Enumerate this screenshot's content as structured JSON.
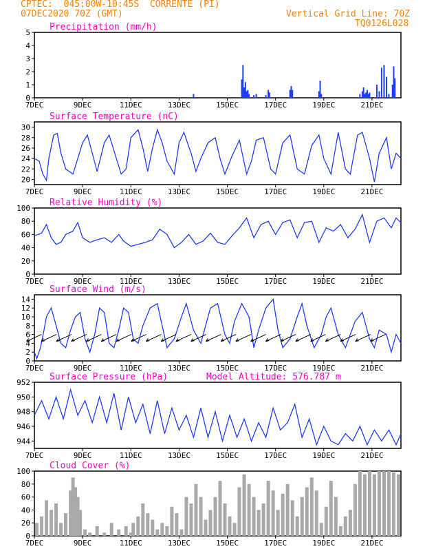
{
  "header": {
    "line1": "CPTEC:  045:00W-10:45S  CORRENTE (PI)",
    "line2": "07DEC2020 70Z (GMT)",
    "right1": "Vertical Grid Line: 70Z",
    "right2": "TQ0126L028",
    "altitude": "Model Altitude: 576.787 m"
  },
  "colors": {
    "header": "#ff8000",
    "title": "#ff00c8",
    "series": "#1e3cff",
    "cloud": "#a9a9a9",
    "frame": "#000000"
  },
  "x_ticks": [
    "7DEC",
    "9DEC",
    "11DEC",
    "13DEC",
    "15DEC",
    "17DEC",
    "19DEC",
    "21DEC"
  ],
  "chart_data": [
    {
      "id": "precip",
      "type": "bar",
      "title": "Precipitation (mm/h)",
      "ylim": [
        0,
        5
      ],
      "yticks": [
        0,
        1,
        2,
        3,
        4,
        5
      ],
      "start_day": 7,
      "end_day": 22.2,
      "x": [
        13.6,
        15.6,
        15.65,
        15.7,
        15.75,
        15.8,
        15.85,
        15.9,
        16.1,
        16.2,
        16.6,
        16.7,
        16.75,
        17.6,
        17.65,
        17.7,
        18.8,
        18.85,
        18.9,
        20.5,
        20.6,
        20.65,
        20.7,
        20.75,
        20.8,
        20.85,
        20.9,
        21.2,
        21.3,
        21.4,
        21.5,
        21.6,
        21.7,
        21.85,
        21.9,
        21.95
      ],
      "values": [
        0.3,
        1.4,
        2.5,
        0.8,
        1.2,
        0.5,
        0.6,
        0.3,
        0.2,
        0.3,
        0.2,
        0.6,
        0.4,
        0.6,
        0.9,
        0.6,
        0.5,
        1.3,
        0.3,
        0.3,
        0.5,
        0.8,
        0.3,
        0.4,
        0.6,
        0.3,
        0.4,
        1.0,
        0.5,
        2.3,
        2.5,
        1.6,
        0.3,
        1.0,
        2.4,
        1.5
      ]
    },
    {
      "id": "temp",
      "type": "line",
      "title": "Surface Temperature (nC)",
      "ylim": [
        19,
        31
      ],
      "yticks": [
        20,
        22,
        24,
        26,
        28,
        30
      ],
      "start_day": 7,
      "end_day": 22.2,
      "x": [
        7.0,
        7.2,
        7.35,
        7.5,
        7.6,
        7.8,
        7.95,
        8.1,
        8.3,
        8.6,
        8.8,
        9.0,
        9.2,
        9.4,
        9.6,
        9.9,
        10.1,
        10.2,
        10.4,
        10.6,
        10.8,
        11.0,
        11.3,
        11.5,
        11.7,
        11.9,
        12.1,
        12.3,
        12.5,
        12.8,
        13.0,
        13.2,
        13.5,
        13.7,
        13.9,
        14.2,
        14.5,
        14.7,
        14.9,
        15.2,
        15.5,
        15.8,
        16.0,
        16.2,
        16.5,
        16.8,
        17.0,
        17.3,
        17.6,
        17.9,
        18.2,
        18.5,
        18.8,
        19.0,
        19.3,
        19.6,
        19.9,
        20.1,
        20.4,
        20.6,
        20.9,
        21.1,
        21.3,
        21.6,
        21.8,
        22.0,
        22.2
      ],
      "values": [
        24,
        23.5,
        21,
        19.8,
        24,
        28.5,
        28.8,
        25,
        22,
        21,
        24,
        27,
        28.5,
        25,
        21.5,
        27,
        28.5,
        27,
        24,
        21,
        22,
        28,
        29.5,
        26,
        21.5,
        26,
        29.5,
        27,
        23.5,
        21,
        27,
        29,
        25,
        21.5,
        24,
        27,
        28,
        24,
        21,
        24.5,
        27.5,
        21,
        23.5,
        27.5,
        28,
        22,
        21,
        27,
        28.5,
        22,
        21,
        26.5,
        28.5,
        24,
        21,
        29,
        22,
        21,
        28.5,
        29,
        24,
        19.5,
        25,
        28,
        22,
        25,
        24
      ]
    },
    {
      "id": "rh",
      "type": "line",
      "title": "Relative Humidity (%)",
      "ylim": [
        0,
        100
      ],
      "yticks": [
        0,
        20,
        40,
        60,
        80,
        100
      ],
      "start_day": 7,
      "end_day": 22.2,
      "x": [
        7.0,
        7.3,
        7.5,
        7.7,
        7.9,
        8.1,
        8.3,
        8.6,
        8.8,
        9.0,
        9.3,
        9.6,
        9.9,
        10.2,
        10.5,
        10.7,
        11.0,
        11.3,
        11.6,
        11.9,
        12.2,
        12.5,
        12.8,
        13.1,
        13.4,
        13.7,
        14.0,
        14.3,
        14.6,
        14.9,
        15.2,
        15.5,
        15.8,
        16.1,
        16.4,
        16.7,
        17.0,
        17.3,
        17.6,
        17.9,
        18.2,
        18.5,
        18.8,
        19.1,
        19.4,
        19.7,
        20.0,
        20.3,
        20.6,
        20.9,
        21.2,
        21.5,
        21.8,
        22.0,
        22.2
      ],
      "values": [
        58,
        62,
        75,
        55,
        45,
        48,
        60,
        65,
        78,
        55,
        48,
        52,
        55,
        48,
        60,
        50,
        42,
        45,
        48,
        52,
        68,
        60,
        40,
        48,
        60,
        45,
        50,
        62,
        48,
        45,
        58,
        70,
        85,
        55,
        75,
        80,
        60,
        78,
        82,
        55,
        78,
        80,
        48,
        70,
        65,
        75,
        55,
        68,
        90,
        48,
        80,
        85,
        70,
        85,
        78
      ]
    },
    {
      "id": "wind",
      "type": "line",
      "title": "Surface Wind (m/s)",
      "ylim": [
        0,
        15
      ],
      "yticks": [
        0,
        2,
        4,
        6,
        8,
        10,
        12,
        14
      ],
      "start_day": 7,
      "end_day": 22.2,
      "x": [
        7.0,
        7.1,
        7.25,
        7.4,
        7.5,
        7.7,
        7.9,
        8.1,
        8.3,
        8.5,
        8.7,
        8.9,
        9.1,
        9.3,
        9.5,
        9.7,
        9.9,
        10.1,
        10.3,
        10.5,
        10.7,
        10.9,
        11.1,
        11.3,
        11.5,
        11.8,
        12.1,
        12.3,
        12.5,
        12.8,
        13.1,
        13.3,
        13.6,
        13.9,
        14.1,
        14.3,
        14.6,
        14.9,
        15.1,
        15.3,
        15.6,
        15.9,
        16.1,
        16.3,
        16.6,
        16.9,
        17.1,
        17.3,
        17.6,
        17.9,
        18.1,
        18.3,
        18.6,
        18.9,
        19.1,
        19.3,
        19.6,
        19.9,
        20.1,
        20.3,
        20.6,
        20.9,
        21.1,
        21.3,
        21.6,
        21.8,
        22.0,
        22.2
      ],
      "values": [
        2,
        0.5,
        3,
        7,
        10,
        12,
        8,
        4,
        3,
        7,
        10,
        11,
        5,
        2,
        6,
        12,
        11,
        4,
        3,
        7,
        12,
        11,
        5,
        4,
        8,
        12,
        13,
        8,
        3,
        5,
        10,
        13,
        7,
        4,
        8,
        12,
        13,
        6,
        4,
        9,
        13,
        10,
        3,
        7,
        12,
        14,
        7,
        3,
        5,
        10,
        13,
        8,
        3,
        6,
        10,
        12,
        6,
        3,
        6,
        9,
        11,
        5,
        3,
        7,
        6,
        2,
        6,
        4
      ]
    },
    {
      "id": "pres",
      "type": "line",
      "title": "Surface Pressure (hPa)",
      "ylim": [
        943,
        952
      ],
      "yticks": [
        944,
        946,
        948,
        950,
        952
      ],
      "start_day": 7,
      "end_day": 22.2,
      "x": [
        7.0,
        7.3,
        7.6,
        7.9,
        8.2,
        8.5,
        8.8,
        9.1,
        9.4,
        9.7,
        10.0,
        10.3,
        10.6,
        10.9,
        11.2,
        11.5,
        11.8,
        12.1,
        12.4,
        12.7,
        13.0,
        13.3,
        13.6,
        13.9,
        14.2,
        14.5,
        14.8,
        15.1,
        15.4,
        15.7,
        16.0,
        16.3,
        16.6,
        16.9,
        17.2,
        17.5,
        17.8,
        18.1,
        18.4,
        18.7,
        19.0,
        19.3,
        19.6,
        19.9,
        20.2,
        20.5,
        20.8,
        21.1,
        21.4,
        21.7,
        22.0,
        22.2
      ],
      "values": [
        947.5,
        949.5,
        947,
        950,
        947,
        951,
        947.5,
        949.5,
        946.5,
        950,
        946.5,
        950.5,
        945.5,
        950,
        946.5,
        949,
        945,
        949.5,
        945,
        948.5,
        945.5,
        947.5,
        944.5,
        948.5,
        944.5,
        948,
        944,
        947.5,
        944.5,
        947,
        944,
        946.5,
        944.5,
        948.5,
        945.5,
        946.5,
        949,
        944.5,
        947,
        943.5,
        946,
        944,
        943.5,
        945,
        944,
        946,
        943.5,
        945.5,
        944,
        945.5,
        943.5,
        945
      ]
    },
    {
      "id": "cloud",
      "type": "bar",
      "title": "Cloud Cover (%)",
      "ylim": [
        0,
        100
      ],
      "yticks": [
        0,
        20,
        40,
        60,
        80,
        100
      ],
      "start_day": 7,
      "end_day": 22.2,
      "x": [
        7.1,
        7.3,
        7.5,
        7.7,
        7.9,
        8.1,
        8.3,
        8.5,
        8.6,
        8.7,
        8.8,
        8.9,
        9.1,
        9.3,
        9.6,
        9.9,
        10.2,
        10.5,
        10.8,
        11.0,
        11.1,
        11.3,
        11.5,
        11.7,
        11.9,
        12.1,
        12.3,
        12.5,
        12.7,
        12.9,
        13.1,
        13.3,
        13.5,
        13.7,
        13.9,
        14.1,
        14.3,
        14.5,
        14.7,
        14.9,
        15.1,
        15.3,
        15.5,
        15.7,
        15.9,
        16.1,
        16.3,
        16.5,
        16.7,
        16.9,
        17.1,
        17.3,
        17.5,
        17.7,
        17.9,
        18.1,
        18.3,
        18.5,
        18.7,
        18.9,
        19.1,
        19.3,
        19.5,
        19.7,
        19.9,
        20.1,
        20.3,
        20.5,
        20.7,
        20.9,
        21.1,
        21.3,
        21.5,
        21.7,
        21.9,
        22.1
      ],
      "values": [
        20,
        30,
        55,
        40,
        50,
        20,
        35,
        70,
        90,
        75,
        60,
        40,
        10,
        5,
        15,
        5,
        20,
        10,
        15,
        5,
        20,
        30,
        50,
        35,
        25,
        10,
        20,
        15,
        45,
        35,
        10,
        60,
        50,
        80,
        60,
        25,
        40,
        60,
        85,
        50,
        30,
        20,
        75,
        95,
        80,
        60,
        40,
        50,
        85,
        70,
        40,
        65,
        80,
        55,
        30,
        60,
        75,
        90,
        70,
        20,
        45,
        85,
        60,
        15,
        30,
        40,
        80,
        100,
        95,
        100,
        95,
        100,
        100,
        100,
        98,
        95
      ]
    }
  ]
}
